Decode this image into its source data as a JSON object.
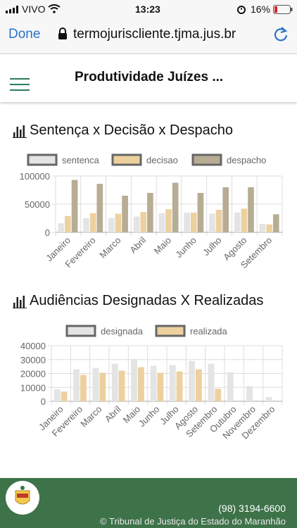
{
  "status": {
    "carrier": "VIVO",
    "time": "13:23",
    "battery": "16%"
  },
  "browser": {
    "done_label": "Done",
    "url": "termojuriscliente.tjma.jus.br"
  },
  "header": {
    "title": "Produtividade Juízes ..."
  },
  "chart1": {
    "title": "Sentença x Decisão x Despacho",
    "chart_data": {
      "type": "bar",
      "categories": [
        "Janeiro",
        "Fevereiro",
        "Marco",
        "Abril",
        "Maio",
        "Junho",
        "Julho",
        "Agosto",
        "Setembro"
      ],
      "series": [
        {
          "name": "sentenca",
          "color": "#e4e4e4",
          "values": [
            16000,
            25000,
            25000,
            28000,
            34000,
            35000,
            33000,
            35000,
            15000
          ]
        },
        {
          "name": "decisao",
          "color": "#ecd19f",
          "values": [
            29000,
            34000,
            33000,
            36000,
            41000,
            35000,
            40000,
            42000,
            14000
          ]
        },
        {
          "name": "despacho",
          "color": "#b7ad94",
          "values": [
            93000,
            86000,
            65000,
            70000,
            88000,
            70000,
            80000,
            80000,
            32000
          ]
        }
      ],
      "yticks": [
        "0",
        "50000",
        "100000"
      ],
      "ylim": [
        0,
        100000
      ]
    }
  },
  "chart2": {
    "title": "Audiências Designadas X Realizadas",
    "chart_data": {
      "type": "bar",
      "categories": [
        "Janeiro",
        "Fevereiro",
        "Marco",
        "Abril",
        "Maio",
        "Junho",
        "Julho",
        "Agosto",
        "Setembro",
        "Outubro",
        "Novembro",
        "Dezembro"
      ],
      "series": [
        {
          "name": "designada",
          "color": "#e4e4e4",
          "values": [
            8500,
            23000,
            24000,
            27000,
            30500,
            25500,
            26000,
            29000,
            27000,
            21000,
            11000,
            3000
          ]
        },
        {
          "name": "realizada",
          "color": "#ecd19f",
          "values": [
            7000,
            19000,
            20500,
            22000,
            24500,
            20500,
            21500,
            23000,
            9000,
            0,
            0,
            0
          ]
        }
      ],
      "yticks": [
        "0",
        "10000",
        "20000",
        "30000",
        "40000"
      ],
      "ylim": [
        0,
        40000
      ]
    }
  },
  "footer": {
    "phone": "(98) 3194-6600",
    "copyright": "© Tribunal de Justiça do Estado do Maranhão"
  }
}
